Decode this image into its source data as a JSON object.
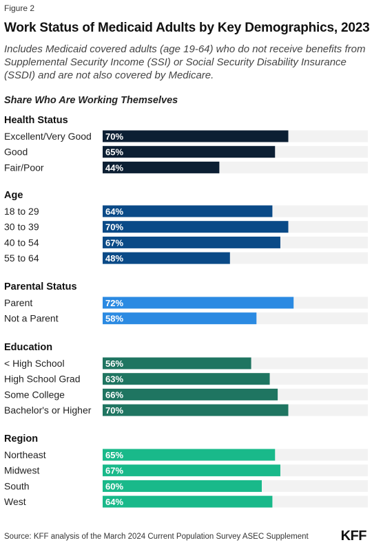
{
  "figure_label": "Figure 2",
  "title": "Work Status of Medicaid Adults by Key Demographics, 2023",
  "subtitle": "Includes Medicaid covered adults (age 19-64) who do not receive benefits from Supplemental Security Income (SSI) or Social Security Disability Insurance (SSDI) and are not also covered by Medicare.",
  "measure_label": "Share Who Are Working Themselves",
  "source": "Source: KFF analysis of the March 2024 Current Population Survey ASEC Supplement",
  "logo_text": "KFF",
  "chart_data": {
    "type": "bar",
    "orientation": "horizontal",
    "xlim": [
      0,
      100
    ],
    "value_suffix": "%",
    "track_color": "#f2f2f2",
    "groups": [
      {
        "name": "Health Status",
        "color": "#0c1f33",
        "categories": [
          "Excellent/Very Good",
          "Good",
          "Fair/Poor"
        ],
        "values": [
          70,
          65,
          44
        ]
      },
      {
        "name": "Age",
        "color": "#0a4a87",
        "categories": [
          "18 to 29",
          "30 to 39",
          "40 to 54",
          "55 to 64"
        ],
        "values": [
          64,
          70,
          67,
          48
        ]
      },
      {
        "name": "Parental Status",
        "color": "#2b8ae2",
        "categories": [
          "Parent",
          "Not a Parent"
        ],
        "values": [
          72,
          58
        ]
      },
      {
        "name": "Education",
        "color": "#1f7561",
        "categories": [
          "< High School",
          "High School Grad",
          "Some College",
          "Bachelor's or Higher"
        ],
        "values": [
          56,
          63,
          66,
          70
        ]
      },
      {
        "name": "Region",
        "color": "#19b98a",
        "categories": [
          "Northeast",
          "Midwest",
          "South",
          "West"
        ],
        "values": [
          65,
          67,
          60,
          64
        ]
      }
    ]
  }
}
